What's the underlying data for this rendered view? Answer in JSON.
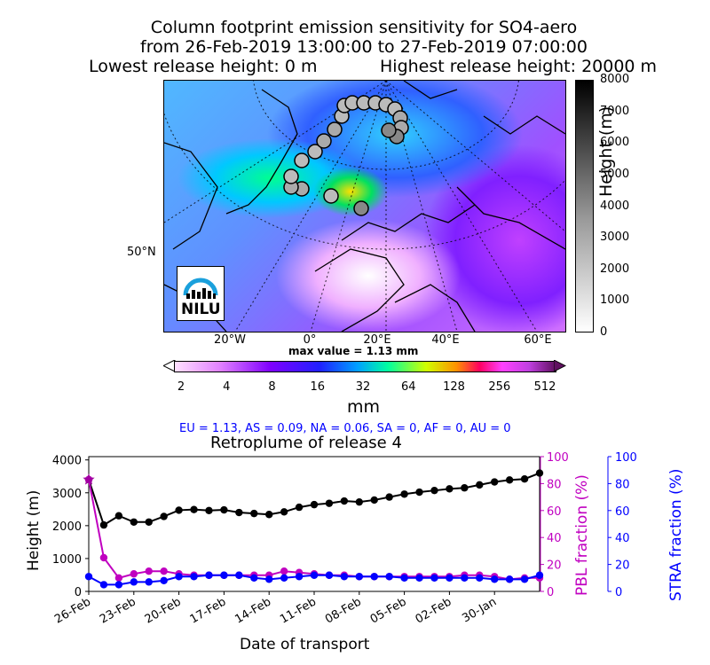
{
  "header": {
    "line1": "Column footprint emission sensitivity for SO4-aero",
    "line2": "from 26-Feb-2019 13:00:00 to 27-Feb-2019 07:00:00",
    "line3_left": "Lowest release height: 0 m",
    "line3_right": "Highest release height: 20000 m"
  },
  "map": {
    "lat_label": "50°N",
    "lon_labels": [
      "20°W",
      "0°",
      "20°E",
      "40°E",
      "60°E"
    ],
    "max_value": "max value = 1.13 mm",
    "logo_text": "NILU",
    "height_colorbar": {
      "label": "Height (m)",
      "ticks": [
        "0",
        "1000",
        "2000",
        "3000",
        "4000",
        "5000",
        "6000",
        "7000",
        "8000"
      ]
    },
    "mm_colorbar": {
      "label": "mm",
      "ticks": [
        "2",
        "4",
        "8",
        "16",
        "32",
        "64",
        "128",
        "256",
        "512"
      ]
    }
  },
  "fractions": "EU = 1.13,  AS = 0.09,  NA = 0.06,  SA = 0,  AF = 0,  AU = 0",
  "colors": {
    "height": "#000000",
    "pbl": "#c000c0",
    "stra": "#0000ff",
    "fractions_text": "#0000ff"
  },
  "chart_data": {
    "type": "line",
    "title": "Retroplume of release 4",
    "xlabel": "Date of transport",
    "ylabel": "Height (m)",
    "y2label": "PBL fraction (%)",
    "y3label": "STRA fraction (%)",
    "ylim": [
      0,
      4100
    ],
    "y2lim": [
      0,
      100
    ],
    "y3lim": [
      0,
      100
    ],
    "y_ticks": [
      0,
      1000,
      2000,
      3000,
      4000
    ],
    "y2_ticks": [
      0,
      20,
      40,
      60,
      80,
      100
    ],
    "y3_ticks": [
      0,
      20,
      40,
      60,
      80,
      100
    ],
    "x_ticks": [
      {
        "label": "26-Feb",
        "day": 0
      },
      {
        "label": "23-Feb",
        "day": 3
      },
      {
        "label": "20-Feb",
        "day": 6
      },
      {
        "label": "17-Feb",
        "day": 9
      },
      {
        "label": "14-Feb",
        "day": 12
      },
      {
        "label": "11-Feb",
        "day": 15
      },
      {
        "label": "08-Feb",
        "day": 18
      },
      {
        "label": "05-Feb",
        "day": 21
      },
      {
        "label": "02-Feb",
        "day": 24
      },
      {
        "label": "30-Jan",
        "day": 27
      }
    ],
    "x_days": [
      0,
      1,
      2,
      3,
      4,
      5,
      6,
      7,
      8,
      9,
      10,
      11,
      12,
      13,
      14,
      15,
      16,
      17,
      18,
      19,
      20,
      21,
      22,
      23,
      24,
      25,
      26,
      27,
      28,
      29,
      30
    ],
    "series": [
      {
        "name": "Height",
        "axis": "y1",
        "values": [
          3400,
          2020,
          2300,
          2110,
          2110,
          2280,
          2470,
          2490,
          2460,
          2480,
          2400,
          2370,
          2340,
          2420,
          2560,
          2640,
          2680,
          2750,
          2720,
          2780,
          2870,
          2960,
          3020,
          3070,
          3120,
          3150,
          3240,
          3330,
          3390,
          3420,
          3600
        ]
      },
      {
        "name": "PBL fraction",
        "axis": "y2",
        "values": [
          83,
          25,
          10,
          13,
          15,
          15,
          13,
          12,
          12,
          12,
          12,
          12,
          12,
          15,
          14,
          13,
          12,
          12,
          11,
          11,
          11,
          11,
          11,
          11,
          11,
          12,
          12,
          11,
          9,
          10,
          10
        ]
      },
      {
        "name": "STRA fraction",
        "axis": "y3",
        "values": [
          11,
          5,
          5,
          7,
          7,
          8,
          11,
          11,
          12,
          12,
          12,
          10,
          9,
          10,
          11,
          12,
          12,
          11,
          11,
          11,
          11,
          10,
          10,
          10,
          10,
          10,
          10,
          9,
          9,
          9,
          12
        ]
      }
    ]
  }
}
